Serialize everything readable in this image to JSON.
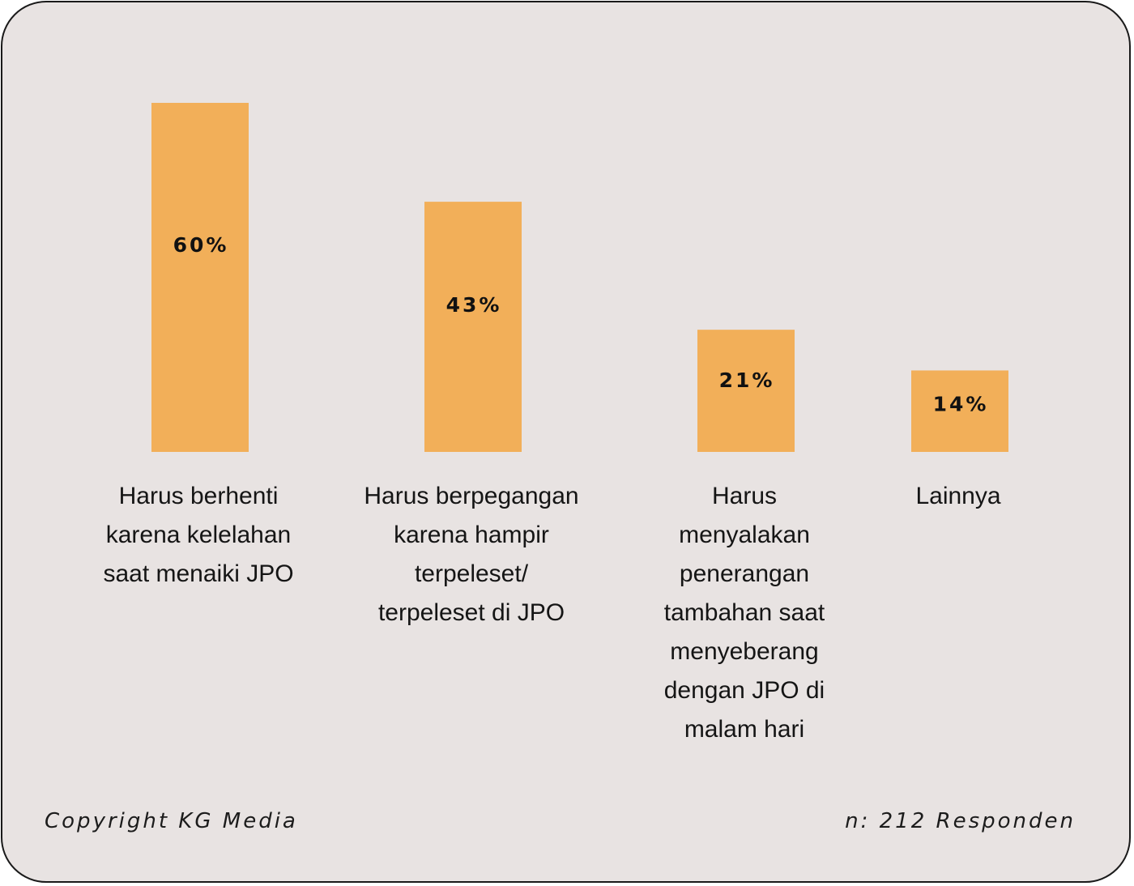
{
  "chart_data": {
    "type": "bar",
    "categories": [
      [
        "Harus berhenti",
        "karena kelelahan",
        "saat menaiki JPO"
      ],
      [
        "Harus berpegangan",
        "karena hampir",
        "terpeleset/",
        "terpeleset di JPO"
      ],
      [
        "Harus",
        "menyalakan",
        "penerangan",
        "tambahan saat",
        "menyeberang",
        "dengan JPO di",
        "malam hari"
      ],
      [
        "Lainnya"
      ]
    ],
    "values": [
      60,
      43,
      21,
      14
    ],
    "value_labels": [
      "60%",
      "43%",
      "21%",
      "14%"
    ],
    "unit": "%",
    "ylim": [
      0,
      60
    ],
    "grid": false,
    "bar_color": "#f2af59"
  },
  "footer": {
    "source": "Copyright KG Media",
    "sample": "n: 212 Responden"
  },
  "colors": {
    "background": "#e8e3e2",
    "border": "#1a1a1a",
    "text": "#151515"
  }
}
